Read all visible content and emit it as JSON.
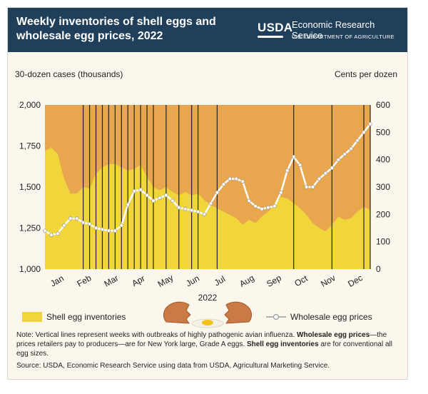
{
  "header": {
    "title_line1": "Weekly inventories of shell eggs and",
    "title_line2": "wholesale egg prices, 2022",
    "logo_text": "USDA",
    "agency": "Economic Research Service",
    "department": "U.S. DEPARTMENT OF AGRICULTURE"
  },
  "colors": {
    "header_bg": "#1f3f5a",
    "plot_bg": "#e8a64e",
    "inventory_fill": "#f0d63a",
    "price_line": "#ffffff",
    "outbreak_line": "#222222"
  },
  "chart_data": {
    "type": "area+line",
    "title": "Weekly inventories of shell eggs and wholesale egg prices, 2022",
    "xlabel": "2022",
    "y_left_label": "30-dozen cases (thousands)",
    "y_right_label": "Cents per dozen",
    "y_left_lim": [
      1000,
      2000
    ],
    "y_right_lim": [
      0,
      600
    ],
    "y_left_ticks": [
      "1,000",
      "1,250",
      "1,500",
      "1,750",
      "2,000"
    ],
    "y_left_tick_values": [
      1000,
      1250,
      1500,
      1750,
      2000
    ],
    "y_right_ticks": [
      "0",
      "100",
      "200",
      "300",
      "400",
      "500",
      "600"
    ],
    "y_right_tick_values": [
      0,
      100,
      200,
      300,
      400,
      500,
      600
    ],
    "month_labels": [
      "Jan",
      "Feb",
      "Mar",
      "Apr",
      "May",
      "Jun",
      "Jul",
      "Aug",
      "Sep",
      "Oct",
      "Nov",
      "Dec"
    ],
    "weeks": [
      1,
      2,
      3,
      4,
      5,
      6,
      7,
      8,
      9,
      10,
      11,
      12,
      13,
      14,
      15,
      16,
      17,
      18,
      19,
      20,
      21,
      22,
      23,
      24,
      25,
      26,
      27,
      28,
      29,
      30,
      31,
      32,
      33,
      34,
      35,
      36,
      37,
      38,
      39,
      40,
      41,
      42,
      43,
      44,
      45,
      46,
      47,
      48,
      49,
      50,
      51,
      52
    ],
    "series": [
      {
        "name": "Shell egg inventories",
        "axis": "left",
        "style": "area",
        "values": [
          1720,
          1740,
          1700,
          1550,
          1460,
          1460,
          1500,
          1490,
          1580,
          1620,
          1640,
          1640,
          1620,
          1600,
          1610,
          1635,
          1560,
          1500,
          1480,
          1500,
          1470,
          1450,
          1470,
          1450,
          1460,
          1420,
          1390,
          1370,
          1350,
          1330,
          1310,
          1270,
          1300,
          1280,
          1320,
          1350,
          1390,
          1440,
          1430,
          1400,
          1370,
          1330,
          1280,
          1250,
          1230,
          1270,
          1320,
          1300,
          1310,
          1350,
          1380,
          1360
        ]
      },
      {
        "name": "Wholesale egg prices",
        "axis": "right",
        "style": "line",
        "values": [
          140,
          125,
          130,
          160,
          185,
          185,
          170,
          165,
          150,
          145,
          140,
          140,
          160,
          235,
          285,
          290,
          270,
          250,
          260,
          270,
          250,
          225,
          220,
          215,
          210,
          200,
          240,
          280,
          310,
          330,
          330,
          320,
          250,
          230,
          220,
          225,
          230,
          280,
          360,
          410,
          380,
          300,
          300,
          330,
          350,
          370,
          400,
          420,
          440,
          470,
          500,
          530
        ]
      }
    ],
    "outbreak_weeks": [
      7,
      8,
      9,
      10,
      11,
      12,
      13,
      14,
      15,
      16,
      17,
      18,
      20,
      22,
      24,
      25,
      28,
      40,
      46,
      51,
      52
    ],
    "legend": {
      "inventory_label": "Shell egg inventories",
      "price_label": "Wholesale egg prices",
      "position": "bottom"
    }
  },
  "notes": {
    "note_prefix": "Note: Vertical lines represent weeks with outbreaks of highly pathogenic avian influenza.",
    "note_wholesale_term": "Wholesale egg prices",
    "note_wholesale_text": "—the prices retailers pay to producers—are for New York large, Grade A eggs.",
    "note_inventory_term": "Shell egg inventories",
    "note_inventory_text": "are for conventional all egg sizes.",
    "source": "Source: USDA, Economic Research Service using data from USDA, Agricultural Marketing Service."
  }
}
